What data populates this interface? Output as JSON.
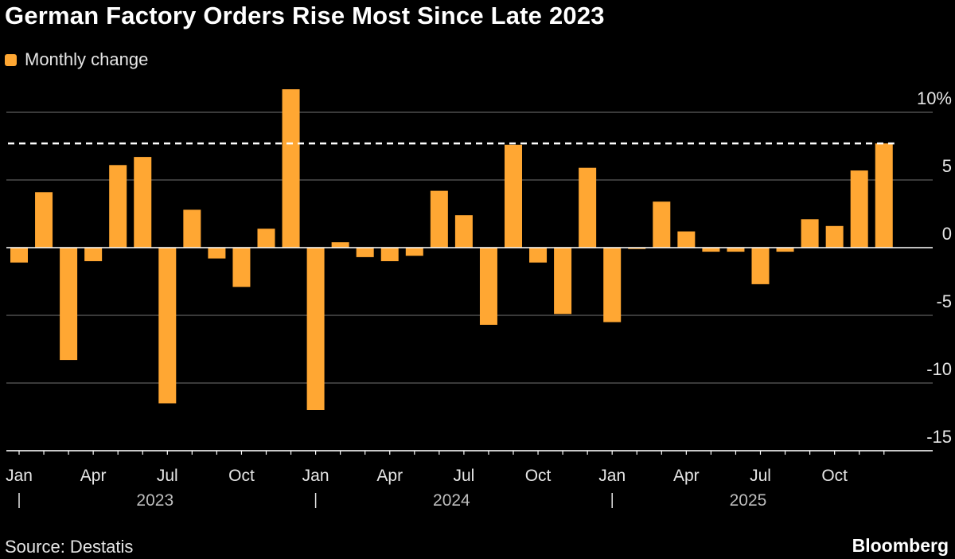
{
  "colors": {
    "bar": "#ffa733",
    "background": "#000000",
    "grid": "#4d4d4d",
    "reference_line": "#ffffff",
    "axis_text": "#e6e6e6"
  },
  "title": "German Factory Orders Rise Most Since Late 2023",
  "legend": {
    "label": "Monthly change"
  },
  "source": "Source: Destatis",
  "brand": "Bloomberg",
  "chart_data": {
    "type": "bar",
    "categories": [
      "2023-01",
      "2023-02",
      "2023-03",
      "2023-04",
      "2023-05",
      "2023-06",
      "2023-07",
      "2023-08",
      "2023-09",
      "2023-10",
      "2023-11",
      "2023-12",
      "2024-01",
      "2024-02",
      "2024-03",
      "2024-04",
      "2024-05",
      "2024-06",
      "2024-07",
      "2024-08",
      "2024-09",
      "2024-10",
      "2024-11",
      "2024-12",
      "2025-01",
      "2025-02",
      "2025-03",
      "2025-04",
      "2025-05",
      "2025-06",
      "2025-07",
      "2025-08",
      "2025-09",
      "2025-10",
      "2025-11",
      "2025-12"
    ],
    "series": [
      {
        "name": "Monthly change",
        "values": [
          -1.1,
          4.1,
          -8.3,
          -1.0,
          6.1,
          6.7,
          -11.5,
          2.8,
          -0.8,
          -2.9,
          1.4,
          11.7,
          -12.0,
          0.4,
          -0.7,
          -1.0,
          -0.6,
          4.2,
          2.4,
          -5.7,
          7.6,
          -1.1,
          -4.9,
          5.9,
          -5.5,
          -0.1,
          3.4,
          1.2,
          -0.3,
          -0.3,
          -2.7,
          -0.3,
          2.1,
          1.6,
          5.7,
          7.7
        ]
      }
    ],
    "reference_line": 7.7,
    "ylim": [
      -15,
      10
    ],
    "y_ticks": [
      10,
      5,
      0,
      -5,
      -10,
      -15
    ],
    "y_tick_labels": [
      "10%",
      "5",
      "0",
      "-5",
      "-10",
      "-15"
    ],
    "x_ticks": [
      {
        "index": 0,
        "label": "Jan"
      },
      {
        "index": 3,
        "label": "Apr"
      },
      {
        "index": 6,
        "label": "Jul"
      },
      {
        "index": 9,
        "label": "Oct"
      },
      {
        "index": 12,
        "label": "Jan"
      },
      {
        "index": 15,
        "label": "Apr"
      },
      {
        "index": 18,
        "label": "Jul"
      },
      {
        "index": 21,
        "label": "Oct"
      },
      {
        "index": 24,
        "label": "Jan"
      },
      {
        "index": 27,
        "label": "Apr"
      },
      {
        "index": 30,
        "label": "Jul"
      },
      {
        "index": 33,
        "label": "Oct"
      }
    ],
    "year_labels": [
      {
        "start_index": 0,
        "label": "2023"
      },
      {
        "start_index": 12,
        "label": "2024"
      },
      {
        "start_index": 24,
        "label": "2025"
      }
    ],
    "grid": true
  }
}
